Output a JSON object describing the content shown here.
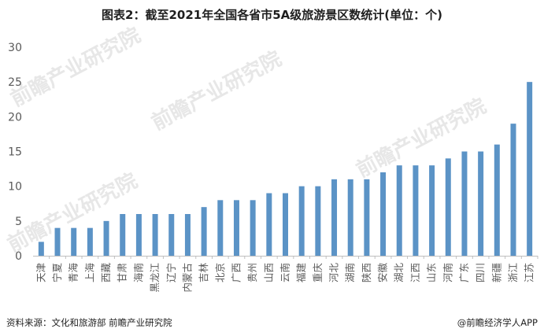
{
  "title": "图表2：截至2021年全国各省市5A级旅游景区数统计(单位：个)",
  "source": "资料来源：文化和旅游部 前瞻产业研究院",
  "app_credit": "@前瞻经济学人APP",
  "watermark": "前瞻产业研究院",
  "colors": {
    "bar": "#5b93c6",
    "axis": "#bfbfbf",
    "tick": "#595959",
    "watermark": "#e7e7e7"
  },
  "chart_data": {
    "type": "bar",
    "title": "图表2：截至2021年全国各省市5A级旅游景区数统计(单位：个)",
    "xlabel": "",
    "ylabel": "",
    "ylim": [
      0,
      30
    ],
    "yticks": [
      0,
      5,
      10,
      15,
      20,
      25,
      30
    ],
    "grid": false,
    "categories": [
      "天津",
      "宁夏",
      "青海",
      "上海",
      "西藏",
      "甘肃",
      "海南",
      "黑龙江",
      "辽宁",
      "内蒙古",
      "吉林",
      "北京",
      "广西",
      "贵州",
      "山西",
      "云南",
      "福建",
      "重庆",
      "河北",
      "湖南",
      "陕西",
      "安徽",
      "湖北",
      "江西",
      "山东",
      "河南",
      "广东",
      "四川",
      "新疆",
      "浙江",
      "江苏"
    ],
    "values": [
      2,
      4,
      4,
      4,
      5,
      6,
      6,
      6,
      6,
      6,
      7,
      8,
      8,
      8,
      9,
      9,
      10,
      10,
      11,
      11,
      11,
      12,
      13,
      13,
      13,
      14,
      15,
      15,
      16,
      19,
      25
    ]
  }
}
